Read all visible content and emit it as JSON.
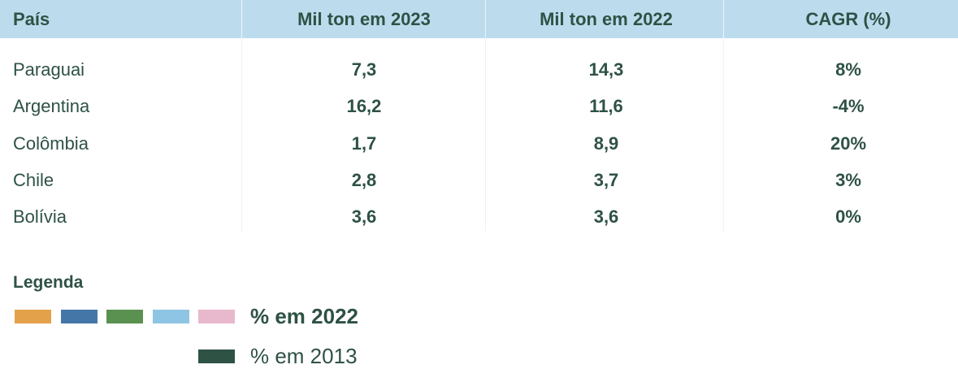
{
  "table": {
    "header": [
      "País",
      "Mil ton em 2023",
      "Mil ton em 2022",
      "CAGR (%)"
    ],
    "rows": [
      [
        "Paraguai",
        "7,3",
        "14,3",
        "8%"
      ],
      [
        "Argentina",
        "16,2",
        "11,6",
        "-4%"
      ],
      [
        "Colômbia",
        "1,7",
        "8,9",
        "20%"
      ],
      [
        "Chile",
        "2,8",
        "3,7",
        "3%"
      ],
      [
        "Bolívia",
        "3,6",
        "3,6",
        "0%"
      ]
    ]
  },
  "legend": {
    "title": "Legenda",
    "items": [
      {
        "label": "% em 2022",
        "colors": [
          "#e3a24a",
          "#4477a8",
          "#5a9150",
          "#8ec5e4",
          "#e8b8cc"
        ]
      },
      {
        "label": "% em 2013",
        "colors": [
          "#2e5244"
        ]
      }
    ]
  }
}
